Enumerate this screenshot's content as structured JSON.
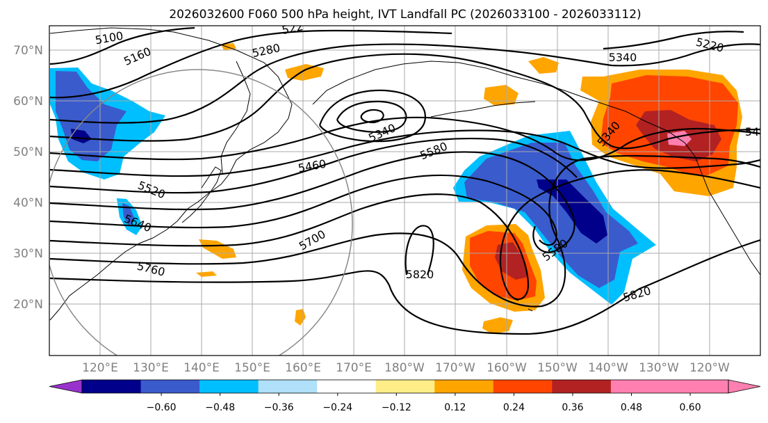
{
  "figure": {
    "title": "2026032600 F060 500 hPa height, IVT Landfall PC (2026033100 - 2026033112)"
  },
  "map": {
    "lat_labels": [
      "70°N",
      "60°N",
      "50°N",
      "40°N",
      "30°N",
      "20°N"
    ],
    "lon_labels": [
      "120°E",
      "130°E",
      "140°E",
      "150°E",
      "160°E",
      "170°E",
      "180°W",
      "170°W",
      "160°W",
      "150°W",
      "140°W",
      "130°W",
      "120°W"
    ],
    "contour_labels": [
      {
        "text": "5100"
      },
      {
        "text": "5160"
      },
      {
        "text": "522"
      },
      {
        "text": "5280"
      },
      {
        "text": "5340"
      },
      {
        "text": "5220"
      },
      {
        "text": "5340"
      },
      {
        "text": "5340"
      },
      {
        "text": "54"
      },
      {
        "text": "5580"
      },
      {
        "text": "5460"
      },
      {
        "text": "5520"
      },
      {
        "text": "5640"
      },
      {
        "text": "5700"
      },
      {
        "text": "5760"
      },
      {
        "text": "5820"
      },
      {
        "text": "5580"
      },
      {
        "text": "5820"
      }
    ]
  },
  "colorbar": {
    "tick_labels": [
      "−0.60",
      "−0.48",
      "−0.36",
      "−0.24",
      "−0.12",
      "0.12",
      "0.24",
      "0.36",
      "0.48",
      "0.60"
    ],
    "colors": [
      "#9932cc",
      "#00008b",
      "#3a5bcc",
      "#00bfff",
      "#b0e0fa",
      "#ffffff",
      "#ffee88",
      "#ffa500",
      "#ff4500",
      "#b22222",
      "#ff80b0",
      "#ff80b0"
    ]
  }
}
